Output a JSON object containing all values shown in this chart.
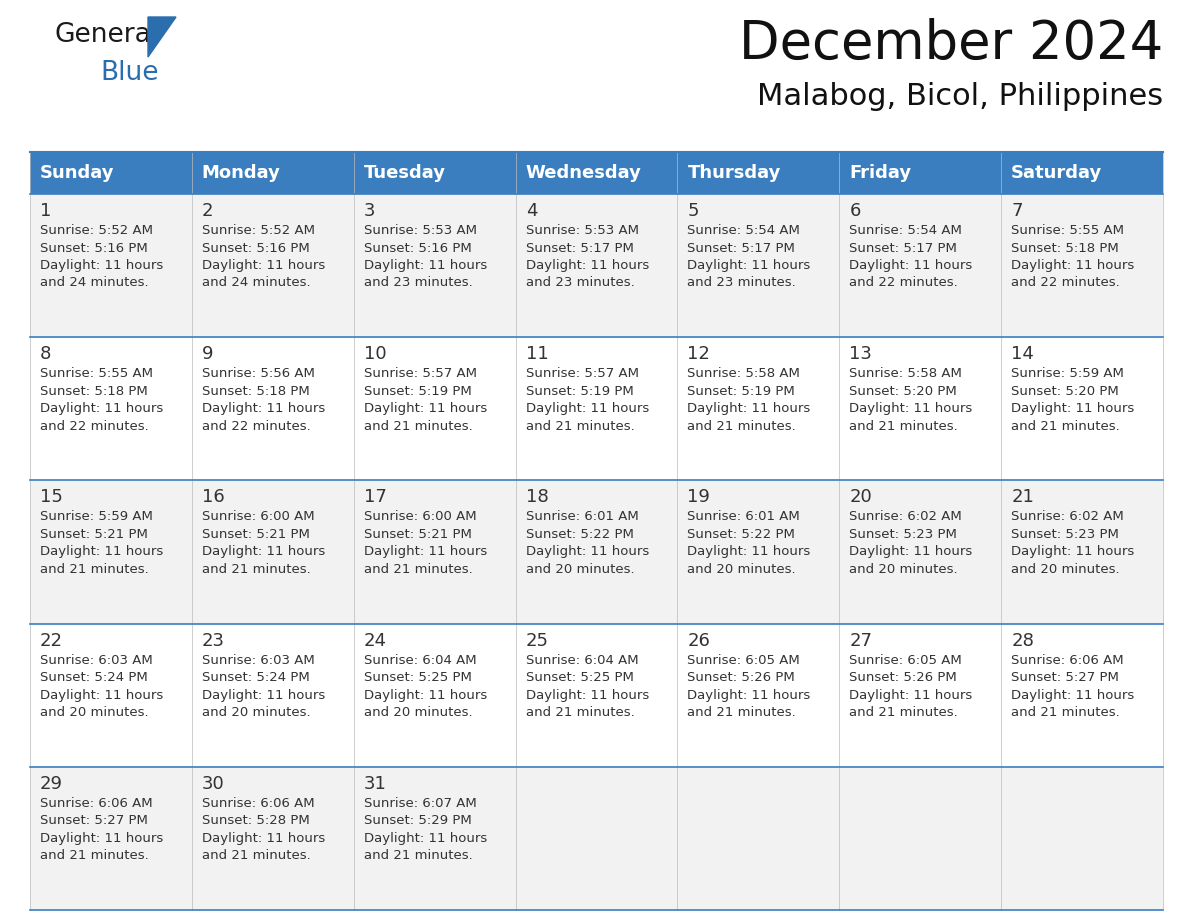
{
  "title": "December 2024",
  "subtitle": "Malabog, Bicol, Philippines",
  "header_bg": "#3a7ebf",
  "header_text": "#ffffff",
  "row_bg_even": "#f2f2f2",
  "row_bg_odd": "#ffffff",
  "border_color": "#3a7ebf",
  "line_color": "#cccccc",
  "days_of_week": [
    "Sunday",
    "Monday",
    "Tuesday",
    "Wednesday",
    "Thursday",
    "Friday",
    "Saturday"
  ],
  "cell_data": [
    [
      "1\nSunrise: 5:52 AM\nSunset: 5:16 PM\nDaylight: 11 hours\nand 24 minutes.",
      "2\nSunrise: 5:52 AM\nSunset: 5:16 PM\nDaylight: 11 hours\nand 24 minutes.",
      "3\nSunrise: 5:53 AM\nSunset: 5:16 PM\nDaylight: 11 hours\nand 23 minutes.",
      "4\nSunrise: 5:53 AM\nSunset: 5:17 PM\nDaylight: 11 hours\nand 23 minutes.",
      "5\nSunrise: 5:54 AM\nSunset: 5:17 PM\nDaylight: 11 hours\nand 23 minutes.",
      "6\nSunrise: 5:54 AM\nSunset: 5:17 PM\nDaylight: 11 hours\nand 22 minutes.",
      "7\nSunrise: 5:55 AM\nSunset: 5:18 PM\nDaylight: 11 hours\nand 22 minutes."
    ],
    [
      "8\nSunrise: 5:55 AM\nSunset: 5:18 PM\nDaylight: 11 hours\nand 22 minutes.",
      "9\nSunrise: 5:56 AM\nSunset: 5:18 PM\nDaylight: 11 hours\nand 22 minutes.",
      "10\nSunrise: 5:57 AM\nSunset: 5:19 PM\nDaylight: 11 hours\nand 21 minutes.",
      "11\nSunrise: 5:57 AM\nSunset: 5:19 PM\nDaylight: 11 hours\nand 21 minutes.",
      "12\nSunrise: 5:58 AM\nSunset: 5:19 PM\nDaylight: 11 hours\nand 21 minutes.",
      "13\nSunrise: 5:58 AM\nSunset: 5:20 PM\nDaylight: 11 hours\nand 21 minutes.",
      "14\nSunrise: 5:59 AM\nSunset: 5:20 PM\nDaylight: 11 hours\nand 21 minutes."
    ],
    [
      "15\nSunrise: 5:59 AM\nSunset: 5:21 PM\nDaylight: 11 hours\nand 21 minutes.",
      "16\nSunrise: 6:00 AM\nSunset: 5:21 PM\nDaylight: 11 hours\nand 21 minutes.",
      "17\nSunrise: 6:00 AM\nSunset: 5:21 PM\nDaylight: 11 hours\nand 21 minutes.",
      "18\nSunrise: 6:01 AM\nSunset: 5:22 PM\nDaylight: 11 hours\nand 20 minutes.",
      "19\nSunrise: 6:01 AM\nSunset: 5:22 PM\nDaylight: 11 hours\nand 20 minutes.",
      "20\nSunrise: 6:02 AM\nSunset: 5:23 PM\nDaylight: 11 hours\nand 20 minutes.",
      "21\nSunrise: 6:02 AM\nSunset: 5:23 PM\nDaylight: 11 hours\nand 20 minutes."
    ],
    [
      "22\nSunrise: 6:03 AM\nSunset: 5:24 PM\nDaylight: 11 hours\nand 20 minutes.",
      "23\nSunrise: 6:03 AM\nSunset: 5:24 PM\nDaylight: 11 hours\nand 20 minutes.",
      "24\nSunrise: 6:04 AM\nSunset: 5:25 PM\nDaylight: 11 hours\nand 20 minutes.",
      "25\nSunrise: 6:04 AM\nSunset: 5:25 PM\nDaylight: 11 hours\nand 21 minutes.",
      "26\nSunrise: 6:05 AM\nSunset: 5:26 PM\nDaylight: 11 hours\nand 21 minutes.",
      "27\nSunrise: 6:05 AM\nSunset: 5:26 PM\nDaylight: 11 hours\nand 21 minutes.",
      "28\nSunrise: 6:06 AM\nSunset: 5:27 PM\nDaylight: 11 hours\nand 21 minutes."
    ],
    [
      "29\nSunrise: 6:06 AM\nSunset: 5:27 PM\nDaylight: 11 hours\nand 21 minutes.",
      "30\nSunrise: 6:06 AM\nSunset: 5:28 PM\nDaylight: 11 hours\nand 21 minutes.",
      "31\nSunrise: 6:07 AM\nSunset: 5:29 PM\nDaylight: 11 hours\nand 21 minutes.",
      "",
      "",
      "",
      ""
    ]
  ],
  "logo_color_general": "#1a1a1a",
  "logo_color_blue": "#2a6ead",
  "title_fontsize": 38,
  "subtitle_fontsize": 22,
  "header_fontsize": 13,
  "day_num_fontsize": 13,
  "cell_text_fontsize": 9.5,
  "figwidth": 11.88,
  "figheight": 9.18,
  "dpi": 100
}
